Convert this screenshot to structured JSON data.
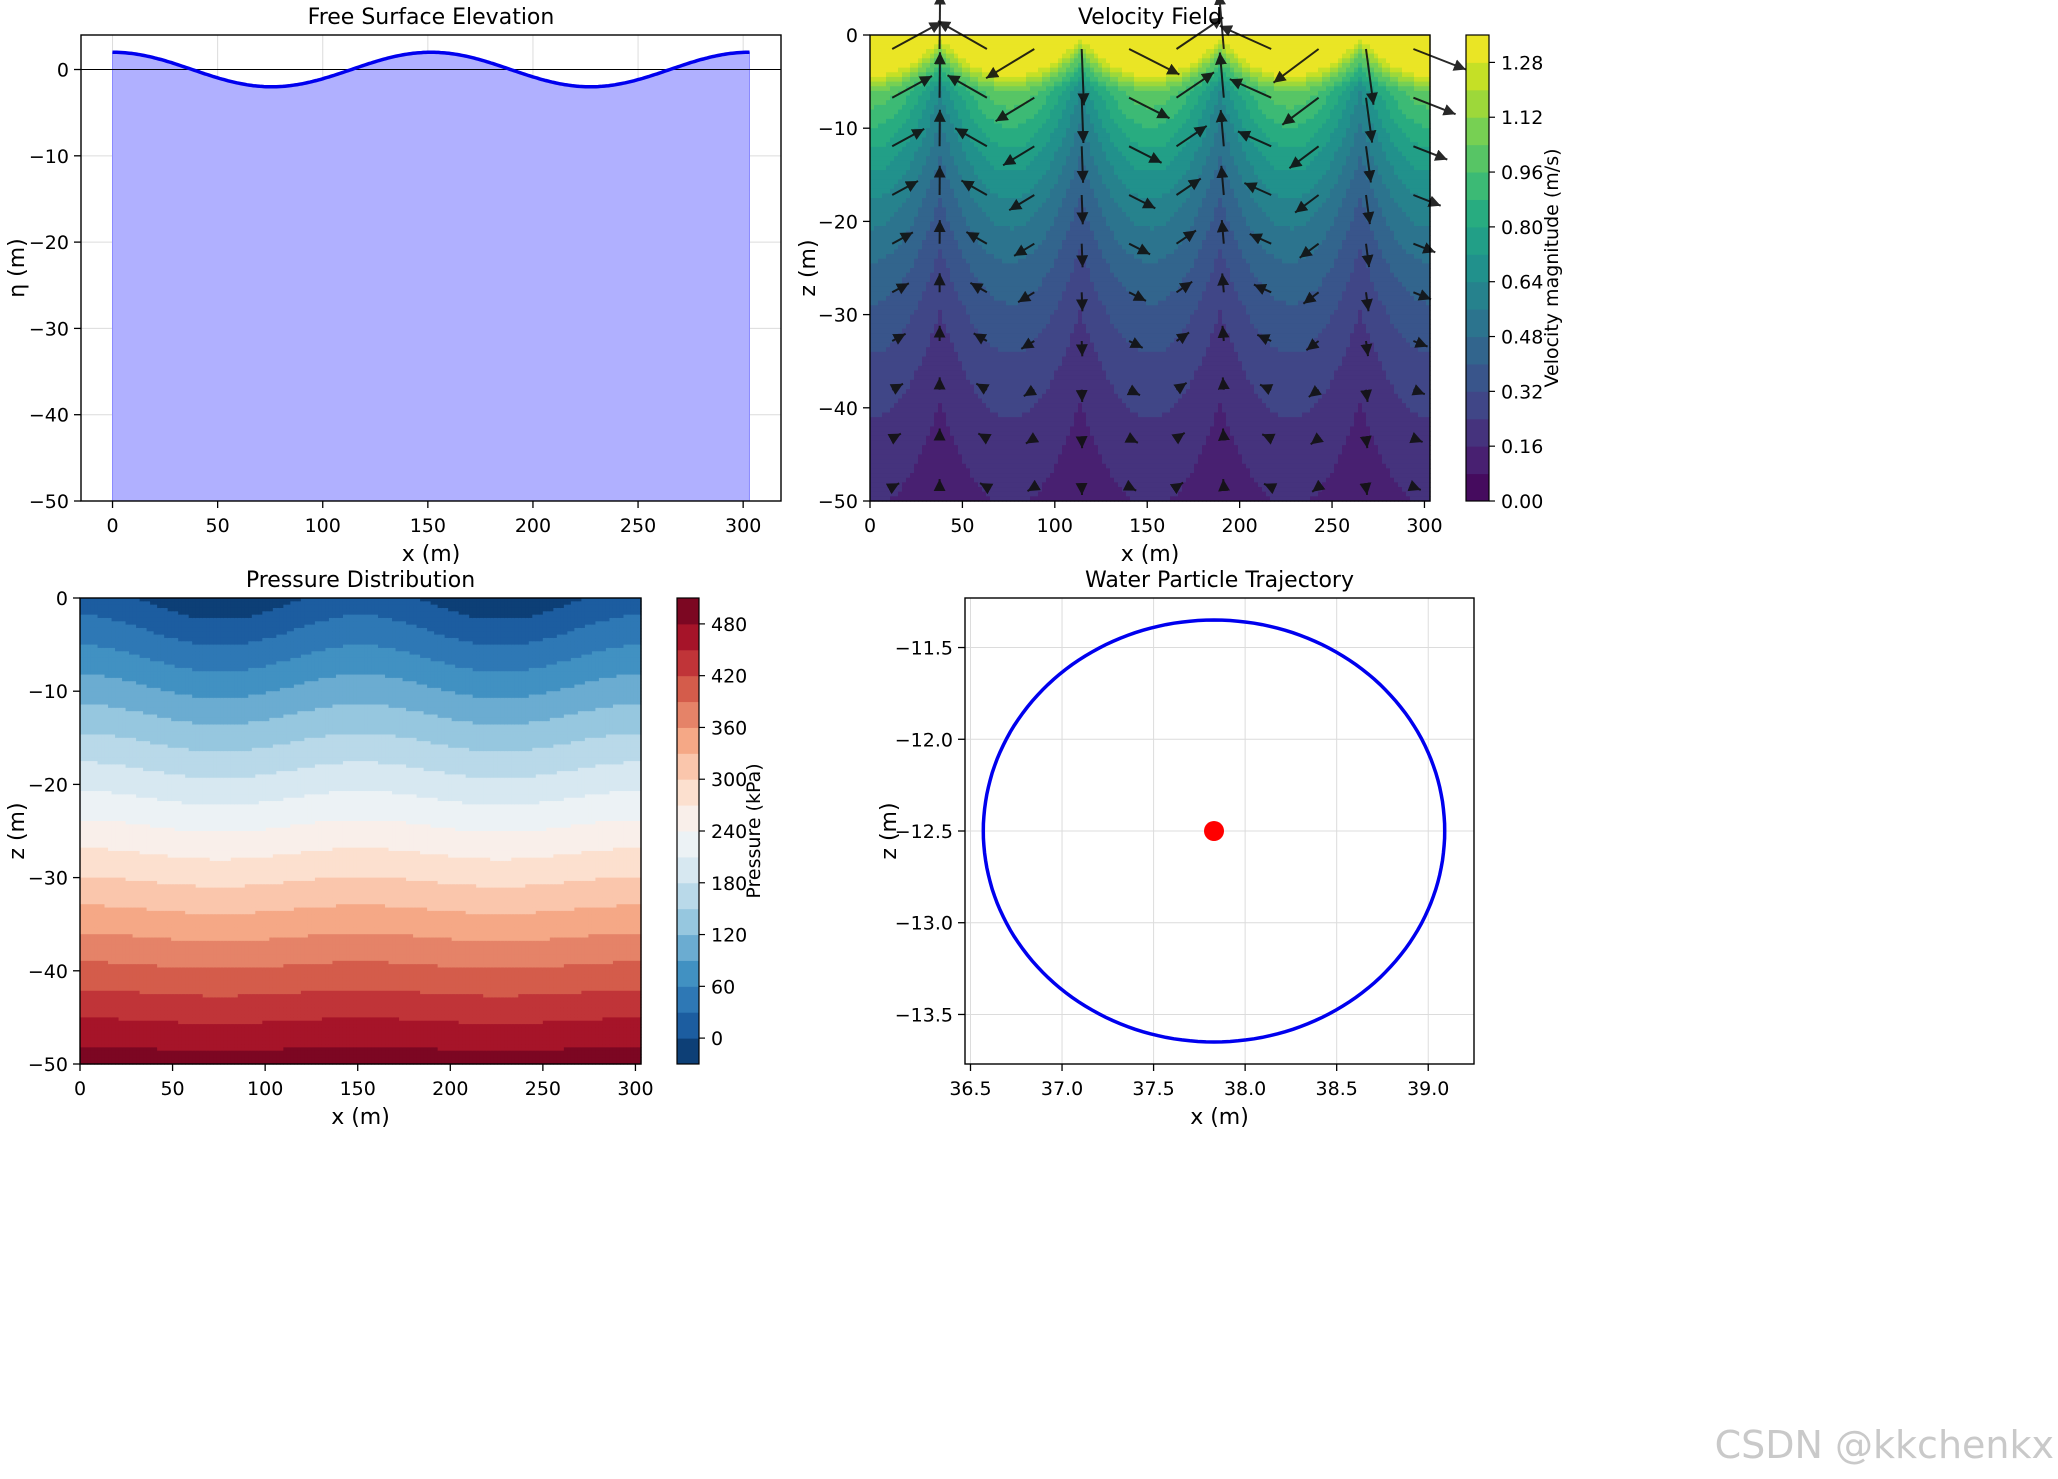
{
  "watermark": "CSDN @kkchenkx",
  "colors": {
    "surface_fill": "#b0b0ff",
    "surface_line": "#0000ee",
    "trajectory": "#0000ee",
    "center_dot": "#ff0000",
    "arrow": "#111111"
  },
  "chart_data": [
    {
      "id": "surface",
      "type": "area",
      "title": "Free Surface Elevation",
      "xlabel": "x (m)",
      "ylabel": "η (m)",
      "xlim": [
        -15,
        318
      ],
      "ylim": [
        -50,
        4
      ],
      "xticks": [
        0,
        50,
        100,
        150,
        200,
        250,
        300
      ],
      "yticks": [
        0,
        -10,
        -20,
        -30,
        -40,
        -50
      ],
      "ytick_labels": [
        "0",
        "−10",
        "−20",
        "−30",
        "−40",
        "−50"
      ],
      "grid": true,
      "wave": {
        "amplitude": 2,
        "wavelength": 151.5,
        "x_start": 0,
        "x_end": 303,
        "fill_to": -50
      },
      "zero_line": 0
    },
    {
      "id": "velocity",
      "type": "heatmap",
      "title": "Velocity Field",
      "xlabel": "x (m)",
      "ylabel": "z (m)",
      "xlim": [
        0,
        303
      ],
      "ylim": [
        -50,
        0
      ],
      "xticks": [
        0,
        50,
        100,
        150,
        200,
        250,
        300
      ],
      "yticks": [
        0,
        -10,
        -20,
        -30,
        -40,
        -50
      ],
      "ytick_labels": [
        "0",
        "−10",
        "−20",
        "−30",
        "−40",
        "−50"
      ],
      "colorbar_label": "Velocity magnitude (m/s)",
      "colorbar_ticks": [
        "0.00",
        "0.16",
        "0.32",
        "0.48",
        "0.64",
        "0.80",
        "0.96",
        "1.12",
        "1.28"
      ],
      "colorbar_range": [
        0,
        1.36
      ],
      "levels": 17,
      "colormap": [
        "#440154",
        "#482475",
        "#414487",
        "#355f8d",
        "#2a788e",
        "#21918c",
        "#22a884",
        "#44bf70",
        "#7ad151",
        "#bddf26",
        "#fde725"
      ],
      "field": {
        "max_magnitude": 1.33,
        "decay_depth": 24
      },
      "arrow_columns": 12,
      "arrow_rows": 10
    },
    {
      "id": "pressure",
      "type": "heatmap",
      "title": "Pressure Distribution",
      "xlabel": "x (m)",
      "ylabel": "z (m)",
      "xlim": [
        0,
        303
      ],
      "ylim": [
        -50,
        0
      ],
      "xticks": [
        0,
        50,
        100,
        150,
        200,
        250,
        300
      ],
      "yticks": [
        0,
        -10,
        -20,
        -30,
        -40,
        -50
      ],
      "ytick_labels": [
        "0",
        "−10",
        "−20",
        "−30",
        "−40",
        "−50"
      ],
      "colorbar_label": "Pressure (kPa)",
      "colorbar_ticks": [
        "0",
        "60",
        "120",
        "180",
        "240",
        "300",
        "360",
        "420",
        "480"
      ],
      "colorbar_range": [
        -30,
        510
      ],
      "level_step": 30,
      "colormap": [
        "#053061",
        "#2166ac",
        "#4393c3",
        "#92c5de",
        "#d1e5f0",
        "#f7f7f7",
        "#fddbc7",
        "#f4a582",
        "#d6604d",
        "#b2182b",
        "#67001f"
      ]
    },
    {
      "id": "trajectory",
      "type": "line",
      "title": "Water Particle Trajectory",
      "xlabel": "x (m)",
      "ylabel": "z (m)",
      "xlim": [
        36.47,
        39.25
      ],
      "ylim": [
        -13.77,
        -11.23
      ],
      "xticks": [
        36.5,
        37.0,
        37.5,
        38.0,
        38.5,
        39.0
      ],
      "xtick_labels": [
        "36.5",
        "37.0",
        "37.5",
        "38.0",
        "38.5",
        "39.0"
      ],
      "yticks": [
        -11.5,
        -12.0,
        -12.5,
        -13.0,
        -13.5
      ],
      "ytick_labels": [
        "−11.5",
        "−12.0",
        "−12.5",
        "−13.0",
        "−13.5"
      ],
      "grid": true,
      "orbit": {
        "cx": 37.83,
        "cz": -12.5,
        "rx": 1.26,
        "rz": 1.15
      },
      "center_point": {
        "x": 37.83,
        "z": -12.5
      }
    }
  ]
}
